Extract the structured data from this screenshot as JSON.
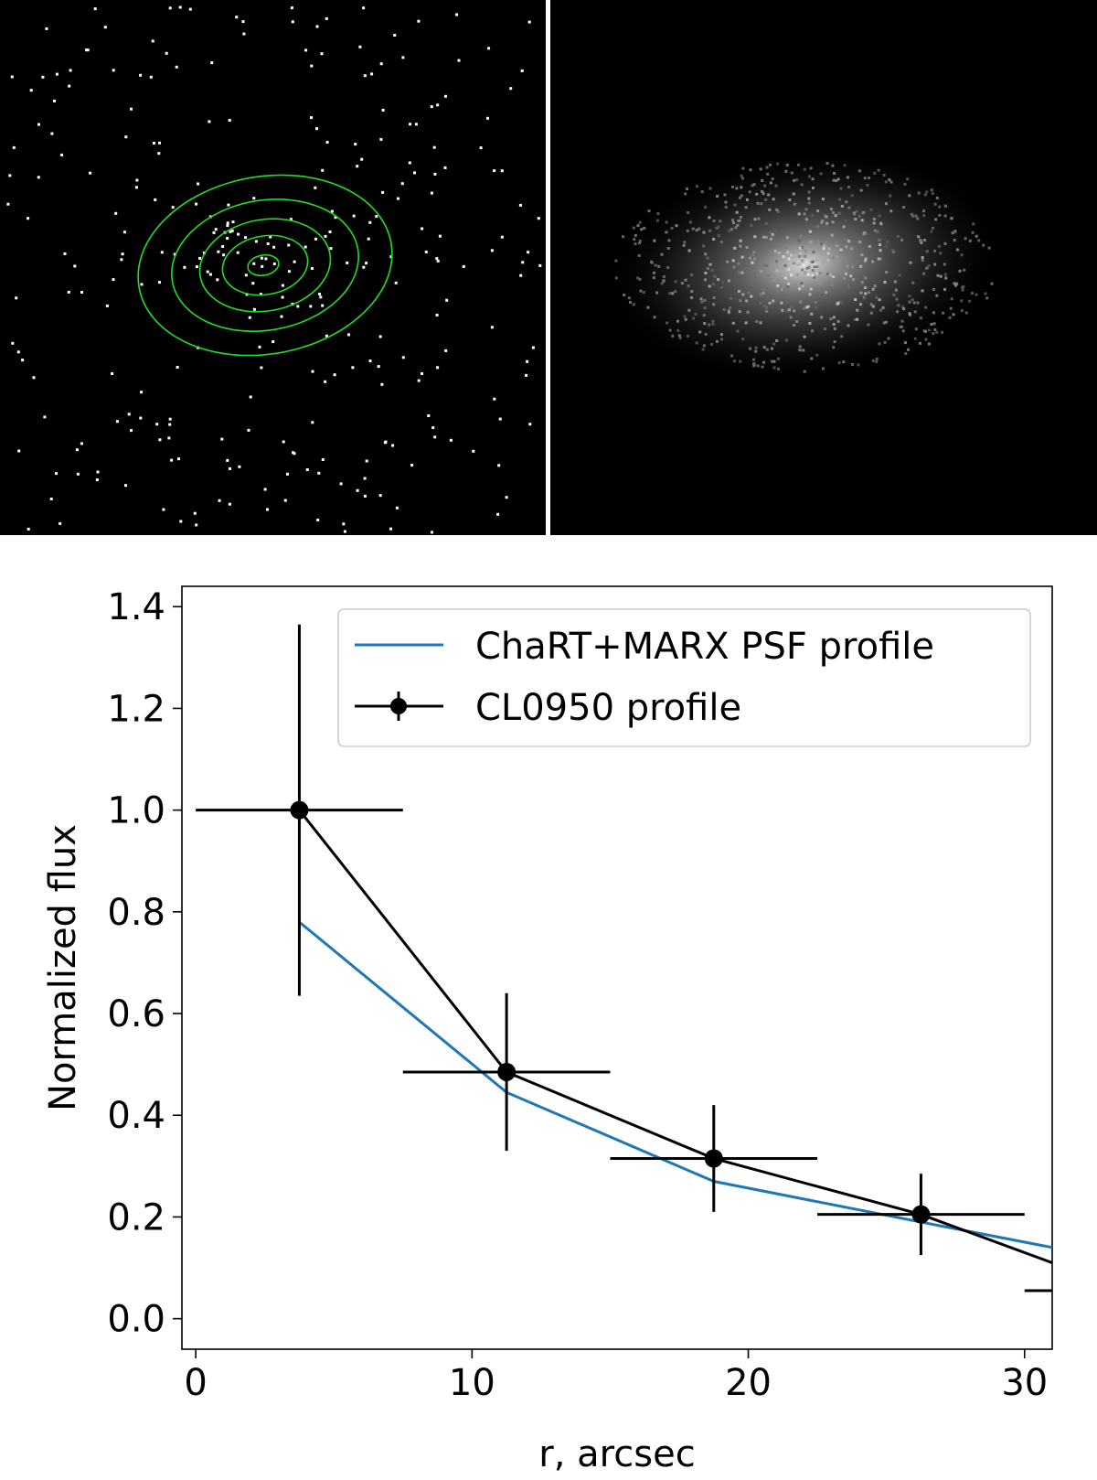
{
  "images": {
    "left_panel": "counts-image-with-green-contours",
    "right_panel": "psf-simulation-image"
  },
  "chart_data": {
    "type": "line",
    "xlabel": "r, arcsec",
    "ylabel": "Normalized flux",
    "xlim": [
      -0.5,
      31
    ],
    "ylim": [
      -0.06,
      1.44
    ],
    "xticks": [
      0,
      10,
      20,
      30
    ],
    "yticks": [
      0.0,
      0.2,
      0.4,
      0.6,
      0.8,
      1.0,
      1.2,
      1.4
    ],
    "xtick_labels": [
      "0",
      "10",
      "20",
      "30"
    ],
    "ytick_labels": [
      "0.0",
      "0.2",
      "0.4",
      "0.6",
      "0.8",
      "1.0",
      "1.2",
      "1.4"
    ],
    "grid": false,
    "legend_position": "upper-right",
    "series": [
      {
        "name": "ChaRT+MARX PSF profile",
        "color": "#1f77b4",
        "style": "line",
        "x": [
          3.75,
          11.25,
          18.75,
          26.25,
          31
        ],
        "y": [
          0.78,
          0.445,
          0.27,
          0.19,
          0.14
        ]
      },
      {
        "name": "CL0950 profile",
        "color": "#000000",
        "style": "errorbar-line",
        "x": [
          3.75,
          11.25,
          18.75,
          26.25,
          33.75
        ],
        "y": [
          1.0,
          0.485,
          0.315,
          0.205,
          0.055
        ],
        "xerr": [
          3.75,
          3.75,
          3.75,
          3.75,
          3.75
        ],
        "yerr": [
          0.365,
          0.155,
          0.105,
          0.08,
          0.0
        ]
      }
    ]
  }
}
